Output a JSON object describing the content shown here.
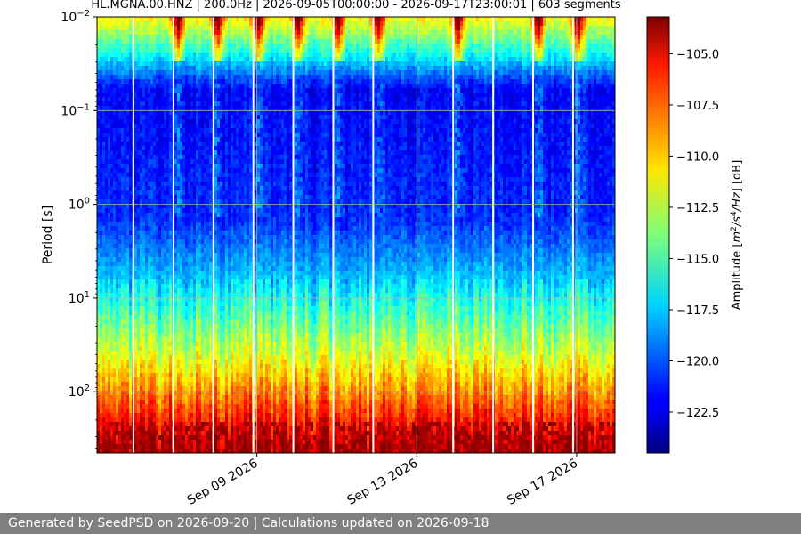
{
  "chart_data": {
    "type": "heatmap",
    "title": "HL.MGNA.00.HNZ | 200.0Hz | 2026-09-05T00:00:00 - 2026-09-17T23:00:01 | 603 segments",
    "xlabel": "",
    "ylabel": "Period [s]",
    "x_ticks": [
      "Sep 09 2026",
      "Sep 13 2026",
      "Sep 17 2026"
    ],
    "x_range": [
      "2026-09-05T00:00:00",
      "2026-09-17T23:00:01"
    ],
    "y_scale": "log",
    "y_range": [
      0.01,
      450
    ],
    "y_ticks": [
      {
        "value": 0.01,
        "base": "10",
        "exp": "−2"
      },
      {
        "value": 0.1,
        "base": "10",
        "exp": "−1"
      },
      {
        "value": 1,
        "base": "10",
        "exp": "0"
      },
      {
        "value": 10,
        "base": "10",
        "exp": "1"
      },
      {
        "value": 100,
        "base": "10",
        "exp": "2"
      }
    ],
    "colorbar": {
      "label": "Amplitude [m²/s⁴/Hz] [dB]",
      "range": [
        -124.5,
        -103.2
      ],
      "ticks": [
        "−105.0",
        "−107.5",
        "−110.0",
        "−112.5",
        "−115.0",
        "−117.5",
        "−120.0",
        "−122.5"
      ],
      "colormap": "jet"
    },
    "grid": true,
    "daily_gridlines": true,
    "data_gaps_dates": [
      "2026-09-06",
      "2026-09-07",
      "2026-09-08",
      "2026-09-09",
      "2026-09-10",
      "2026-09-11",
      "2026-09-12",
      "2026-09-14",
      "2026-09-15",
      "2026-09-16",
      "2026-09-17"
    ],
    "high_noise_periods": [
      "2026-09-07",
      "2026-09-08",
      "2026-09-09",
      "2026-09-10",
      "2026-09-11",
      "2026-09-12",
      "2026-09-14",
      "2026-09-16",
      "2026-09-17"
    ]
  },
  "footer": "Generated by SeedPSD on 2026-09-20 | Calculations updated on 2026-09-18"
}
